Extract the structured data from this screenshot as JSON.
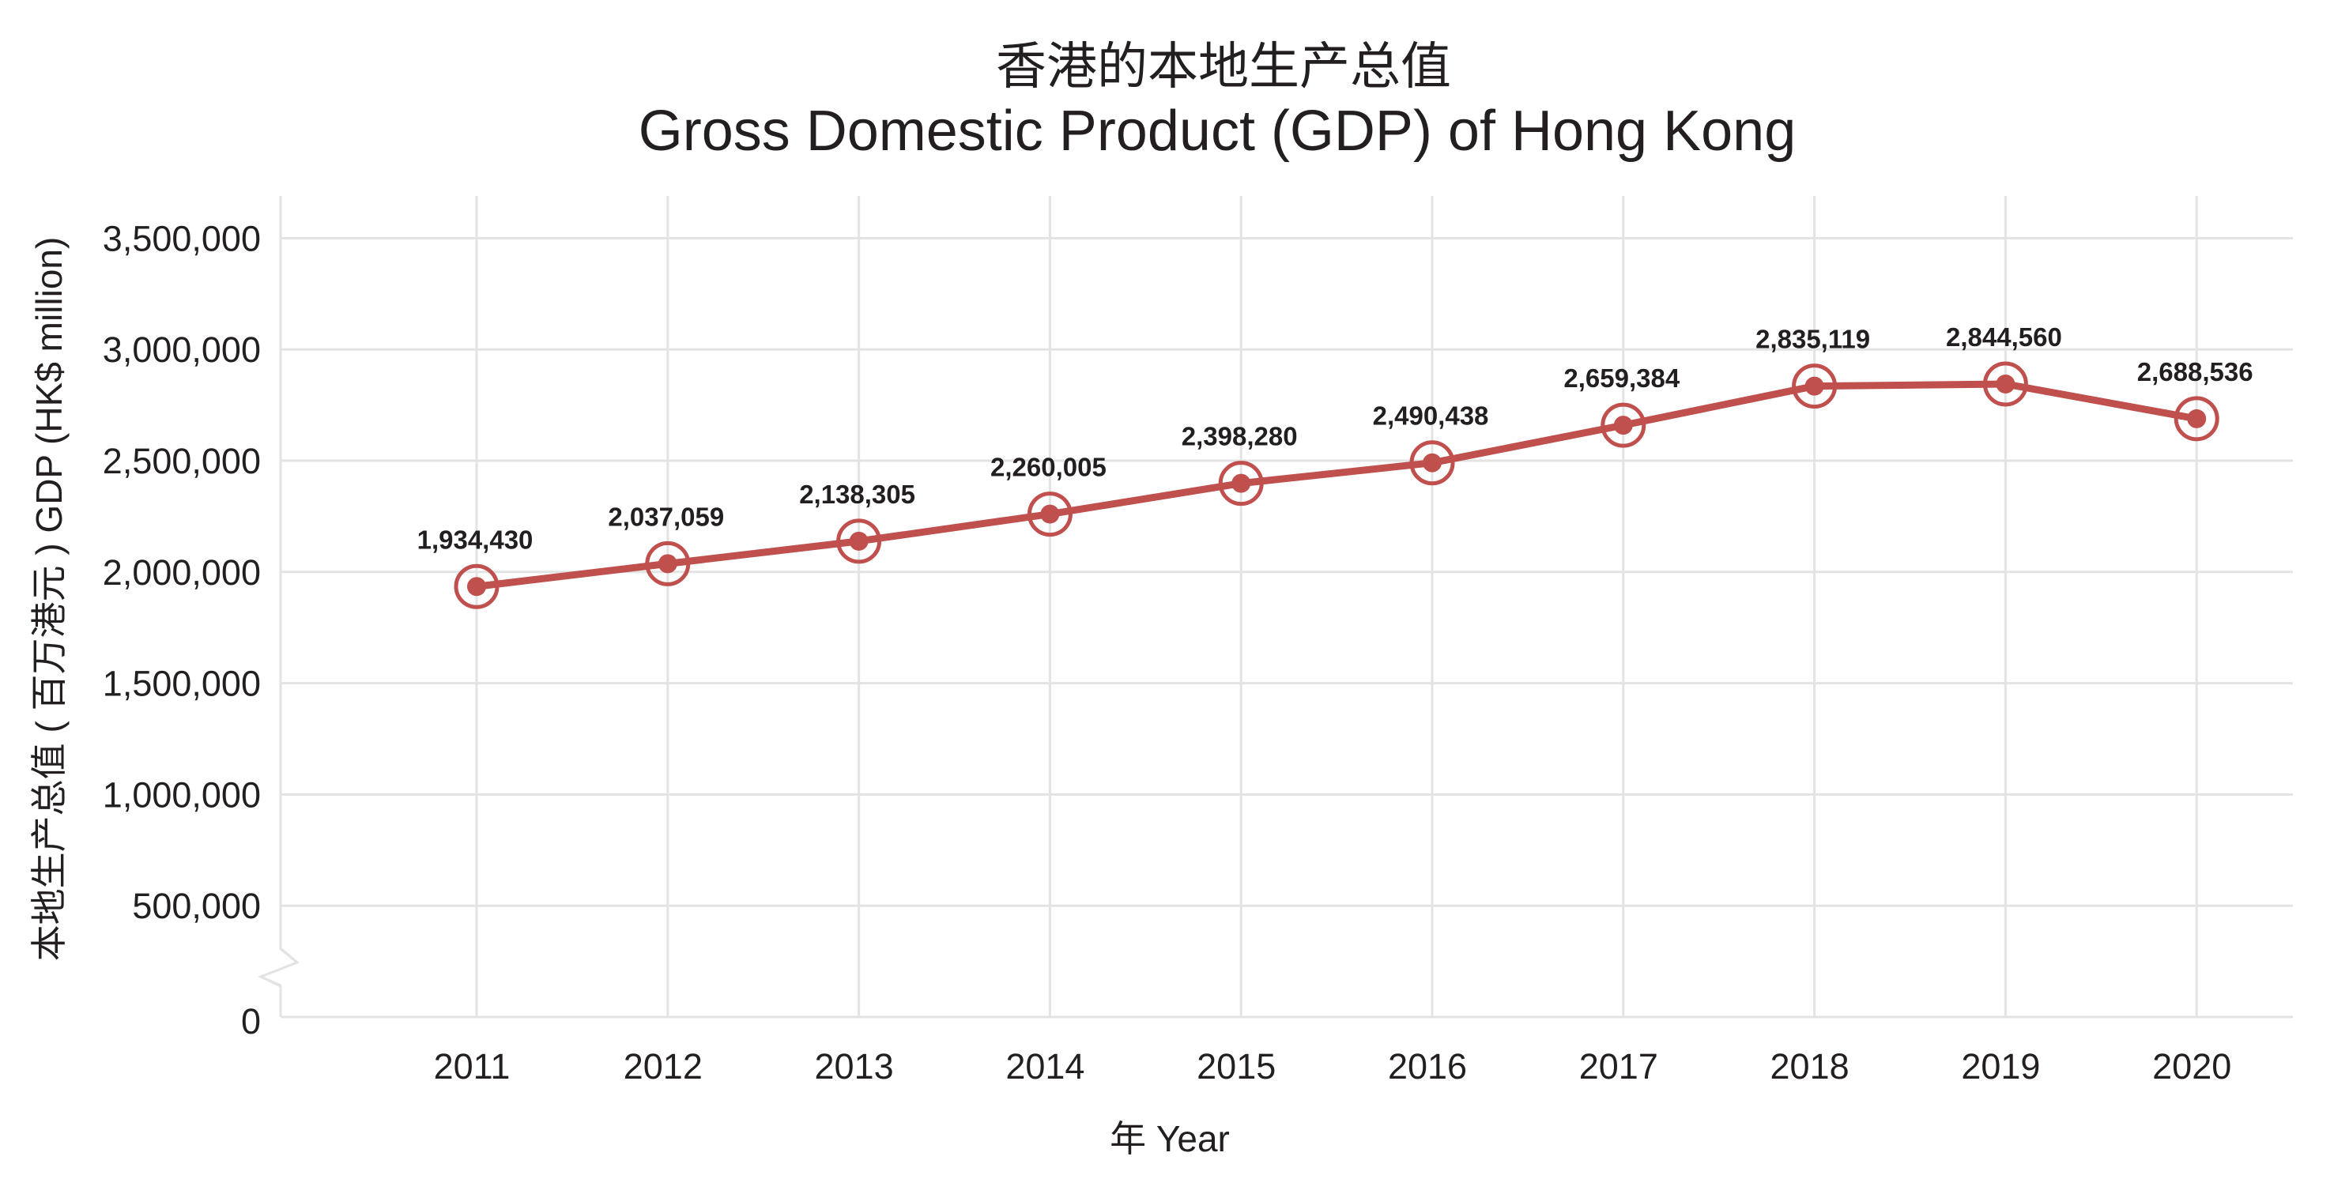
{
  "title": {
    "zh": "香港的本地生产总值",
    "en": "Gross Domestic Product (GDP) of Hong Kong"
  },
  "axes": {
    "x_label": "年 Year",
    "y_label": "本地生产总值 ( 百万港元 ) GDP (HK$ million)"
  },
  "colors": {
    "series": "#c0504d",
    "grid": "#e3e3e3",
    "text": "#231f20"
  },
  "chart_data": {
    "type": "line",
    "title": "香港的本地生产总值 / Gross Domestic Product (GDP) of Hong Kong",
    "xlabel": "年 Year",
    "ylabel": "本地生产总值 ( 百万港元 ) GDP (HK$ million)",
    "categories": [
      "2011",
      "2012",
      "2013",
      "2014",
      "2015",
      "2016",
      "2017",
      "2018",
      "2019",
      "2020"
    ],
    "series": [
      {
        "name": "GDP (HK$ million)",
        "values": [
          1934430,
          2037059,
          2138305,
          2260005,
          2398280,
          2490438,
          2659384,
          2835119,
          2844560,
          2688536
        ],
        "labels": [
          "1,934,430",
          "2,037,059",
          "2,138,305",
          "2,260,005",
          "2,398,280",
          "2,490,438",
          "2,659,384",
          "2,835,119",
          "2,844,560",
          "2,688,536"
        ]
      }
    ],
    "y_ticks": [
      0,
      500000,
      1000000,
      1500000,
      2000000,
      2500000,
      3000000,
      3500000
    ],
    "y_tick_labels": [
      "0",
      "500,000",
      "1,000,000",
      "1,500,000",
      "2,000,000",
      "2,500,000",
      "3,000,000",
      "3,500,000"
    ],
    "ylim": [
      0,
      3500000
    ],
    "axis_break": "between 0 and 500,000",
    "grid": true,
    "legend": "none",
    "markers": "circle with outer ring",
    "data_labels": "above each point"
  }
}
